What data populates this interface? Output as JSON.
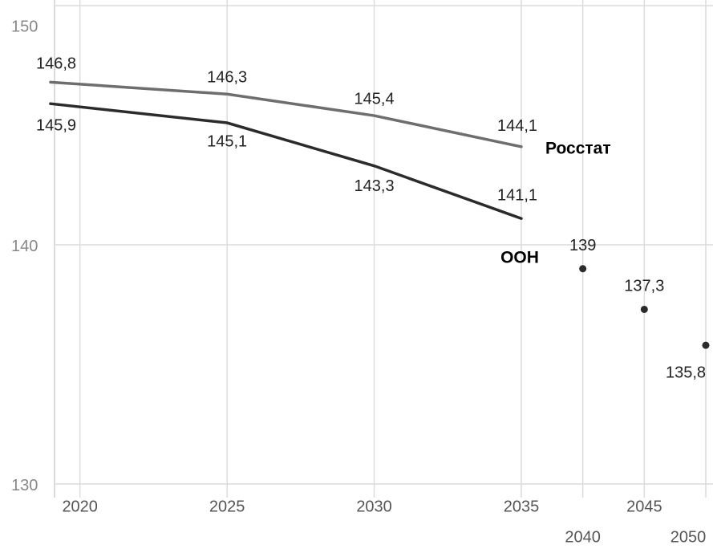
{
  "chart_data": {
    "type": "line",
    "x_ticks_note_free": null,
    "xticks": [
      2020,
      2025,
      2030,
      2035,
      2040,
      2045,
      2050
    ],
    "xlim": [
      2019,
      2050
    ],
    "ylim": [
      130,
      150
    ],
    "yticks": [
      130,
      140,
      150
    ],
    "grid": true,
    "series": [
      {
        "name": "Росстат",
        "color": "#6e6e6e",
        "x": [
          2019,
          2025,
          2030,
          2035
        ],
        "values": [
          146.8,
          146.3,
          145.4,
          144.1
        ],
        "value_labels": [
          "146,8",
          "146,3",
          "145,4",
          "144,1"
        ]
      },
      {
        "name": "ООН",
        "color": "#2b2b2b",
        "dots_after": 2035,
        "x": [
          2019,
          2025,
          2030,
          2035,
          2040,
          2045,
          2050
        ],
        "values": [
          145.9,
          145.1,
          143.3,
          141.1,
          139,
          137.3,
          135.8
        ],
        "value_labels": [
          "145,9",
          "145,1",
          "143,3",
          "141,1",
          "139",
          "137,3",
          "135,8"
        ]
      }
    ]
  }
}
